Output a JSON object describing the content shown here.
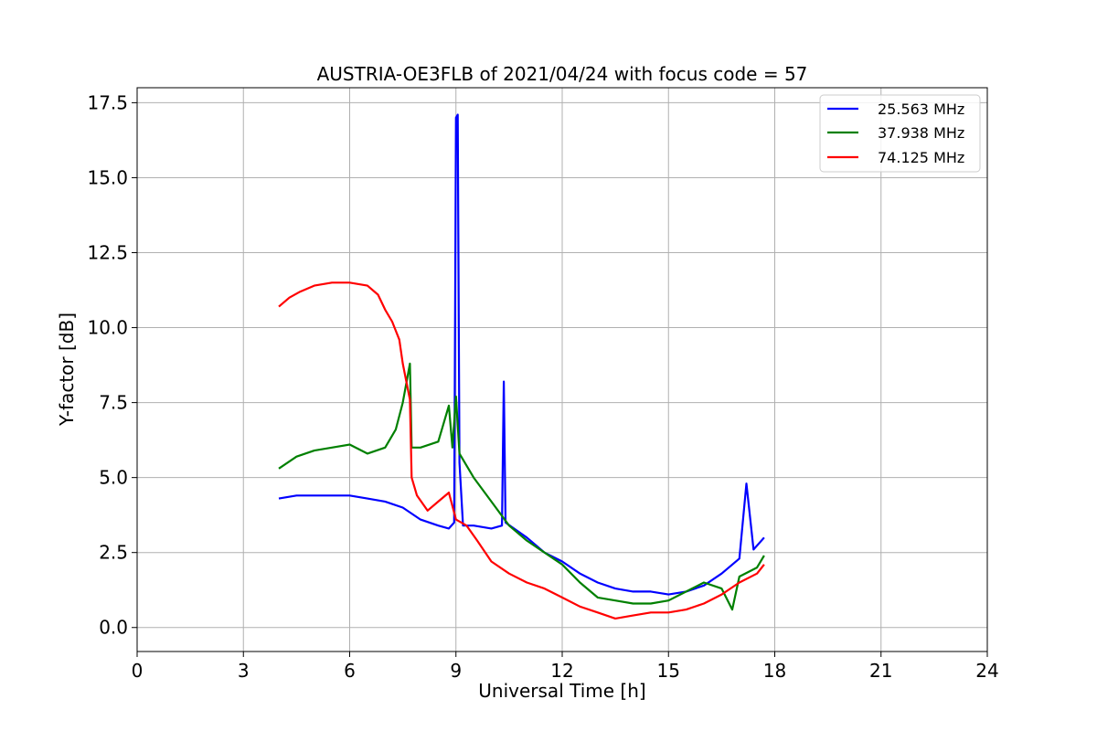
{
  "chart_data": {
    "type": "line",
    "title": "AUSTRIA-OE3FLB of 2021/04/24 with focus code = 57",
    "xlabel": "Universal Time [h]",
    "ylabel": "Y-factor [dB]",
    "xlim": [
      0,
      24
    ],
    "ylim": [
      -0.8,
      18.0
    ],
    "x_ticks": [
      0,
      3,
      6,
      9,
      12,
      15,
      18,
      21,
      24
    ],
    "x_tick_labels": [
      "0",
      "3",
      "6",
      "9",
      "12",
      "15",
      "18",
      "21",
      "24"
    ],
    "y_ticks": [
      0.0,
      2.5,
      5.0,
      7.5,
      10.0,
      12.5,
      15.0,
      17.5
    ],
    "y_tick_labels": [
      "0.0",
      "2.5",
      "5.0",
      "7.5",
      "10.0",
      "12.5",
      "15.0",
      "17.5"
    ],
    "grid": true,
    "legend_position": "top-right",
    "series": [
      {
        "name": "25.563 MHz",
        "color": "#0000ff",
        "points": [
          [
            4.0,
            4.3
          ],
          [
            4.5,
            4.4
          ],
          [
            5.0,
            4.4
          ],
          [
            5.5,
            4.4
          ],
          [
            6.0,
            4.4
          ],
          [
            6.5,
            4.3
          ],
          [
            7.0,
            4.2
          ],
          [
            7.5,
            4.0
          ],
          [
            8.0,
            3.6
          ],
          [
            8.5,
            3.4
          ],
          [
            8.8,
            3.3
          ],
          [
            8.95,
            3.5
          ],
          [
            9.0,
            17.0
          ],
          [
            9.05,
            17.1
          ],
          [
            9.1,
            5.5
          ],
          [
            9.2,
            3.4
          ],
          [
            9.5,
            3.4
          ],
          [
            10.0,
            3.3
          ],
          [
            10.3,
            3.4
          ],
          [
            10.35,
            8.2
          ],
          [
            10.4,
            3.5
          ],
          [
            11.0,
            3.0
          ],
          [
            11.5,
            2.5
          ],
          [
            12.0,
            2.2
          ],
          [
            12.5,
            1.8
          ],
          [
            13.0,
            1.5
          ],
          [
            13.5,
            1.3
          ],
          [
            14.0,
            1.2
          ],
          [
            14.5,
            1.2
          ],
          [
            15.0,
            1.1
          ],
          [
            15.5,
            1.2
          ],
          [
            16.0,
            1.4
          ],
          [
            16.5,
            1.8
          ],
          [
            17.0,
            2.3
          ],
          [
            17.2,
            4.8
          ],
          [
            17.4,
            2.6
          ],
          [
            17.7,
            3.0
          ]
        ]
      },
      {
        "name": "37.938 MHz",
        "color": "#008000",
        "points": [
          [
            4.0,
            5.3
          ],
          [
            4.5,
            5.7
          ],
          [
            5.0,
            5.9
          ],
          [
            5.5,
            6.0
          ],
          [
            6.0,
            6.1
          ],
          [
            6.5,
            5.8
          ],
          [
            7.0,
            6.0
          ],
          [
            7.3,
            6.6
          ],
          [
            7.5,
            7.5
          ],
          [
            7.7,
            8.8
          ],
          [
            7.75,
            6.0
          ],
          [
            8.0,
            6.0
          ],
          [
            8.5,
            6.2
          ],
          [
            8.8,
            7.4
          ],
          [
            8.9,
            6.0
          ],
          [
            9.0,
            7.7
          ],
          [
            9.1,
            5.8
          ],
          [
            9.5,
            5.0
          ],
          [
            10.0,
            4.2
          ],
          [
            10.5,
            3.4
          ],
          [
            11.0,
            2.9
          ],
          [
            11.5,
            2.5
          ],
          [
            12.0,
            2.1
          ],
          [
            12.5,
            1.5
          ],
          [
            13.0,
            1.0
          ],
          [
            13.5,
            0.9
          ],
          [
            14.0,
            0.8
          ],
          [
            14.5,
            0.8
          ],
          [
            15.0,
            0.9
          ],
          [
            15.5,
            1.2
          ],
          [
            16.0,
            1.5
          ],
          [
            16.5,
            1.3
          ],
          [
            16.8,
            0.6
          ],
          [
            17.0,
            1.7
          ],
          [
            17.5,
            2.0
          ],
          [
            17.7,
            2.4
          ]
        ]
      },
      {
        "name": "74.125 MHz",
        "color": "#ff0000",
        "points": [
          [
            4.0,
            10.7
          ],
          [
            4.3,
            11.0
          ],
          [
            4.6,
            11.2
          ],
          [
            5.0,
            11.4
          ],
          [
            5.5,
            11.5
          ],
          [
            6.0,
            11.5
          ],
          [
            6.5,
            11.4
          ],
          [
            6.8,
            11.1
          ],
          [
            7.0,
            10.6
          ],
          [
            7.2,
            10.2
          ],
          [
            7.4,
            9.6
          ],
          [
            7.5,
            8.8
          ],
          [
            7.6,
            8.2
          ],
          [
            7.7,
            7.6
          ],
          [
            7.75,
            5.0
          ],
          [
            7.9,
            4.4
          ],
          [
            8.2,
            3.9
          ],
          [
            8.5,
            4.2
          ],
          [
            8.8,
            4.5
          ],
          [
            9.0,
            3.6
          ],
          [
            9.3,
            3.4
          ],
          [
            9.6,
            2.9
          ],
          [
            10.0,
            2.2
          ],
          [
            10.5,
            1.8
          ],
          [
            11.0,
            1.5
          ],
          [
            11.5,
            1.3
          ],
          [
            12.0,
            1.0
          ],
          [
            12.5,
            0.7
          ],
          [
            13.0,
            0.5
          ],
          [
            13.5,
            0.3
          ],
          [
            14.0,
            0.4
          ],
          [
            14.5,
            0.5
          ],
          [
            15.0,
            0.5
          ],
          [
            15.5,
            0.6
          ],
          [
            16.0,
            0.8
          ],
          [
            16.5,
            1.1
          ],
          [
            17.0,
            1.5
          ],
          [
            17.5,
            1.8
          ],
          [
            17.7,
            2.1
          ]
        ]
      }
    ]
  }
}
